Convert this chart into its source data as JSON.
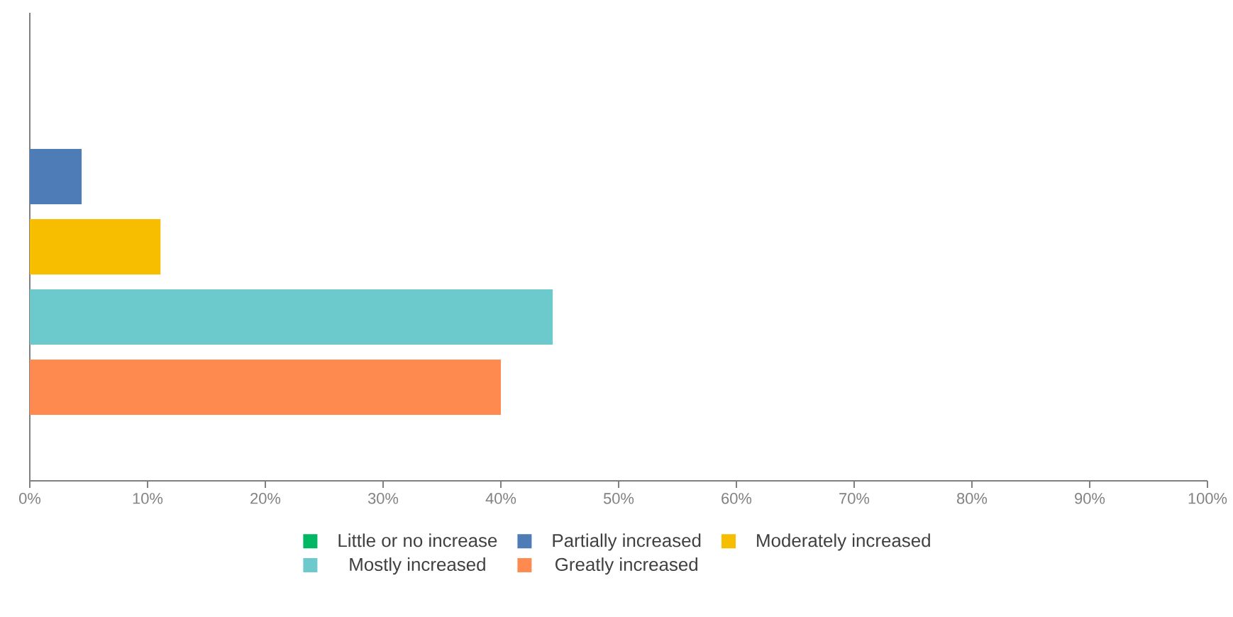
{
  "chart_data": {
    "type": "bar",
    "orientation": "horizontal",
    "categories": [
      null
    ],
    "series": [
      {
        "name": "Little or no increase",
        "color": "#00b863",
        "values": [
          0
        ]
      },
      {
        "name": "Partially increased",
        "color": "#4e7cb6",
        "values": [
          4.4
        ]
      },
      {
        "name": "Moderately increased",
        "color": "#f7be00",
        "values": [
          11.1
        ]
      },
      {
        "name": "Mostly increased",
        "color": "#6cc9cc",
        "values": [
          44.4
        ]
      },
      {
        "name": "Greatly increased",
        "color": "#ff8a50",
        "values": [
          40.0
        ]
      }
    ],
    "xlim": [
      0,
      100
    ],
    "xticks": [
      {
        "value": 0,
        "label": "0%"
      },
      {
        "value": 10,
        "label": "10%"
      },
      {
        "value": 20,
        "label": "20%"
      },
      {
        "value": 30,
        "label": "30%"
      },
      {
        "value": 40,
        "label": "40%"
      },
      {
        "value": 50,
        "label": "50%"
      },
      {
        "value": 60,
        "label": "60%"
      },
      {
        "value": 70,
        "label": "70%"
      },
      {
        "value": 80,
        "label": "80%"
      },
      {
        "value": 90,
        "label": "90%"
      },
      {
        "value": 100,
        "label": "100%"
      }
    ],
    "legend": "bottom"
  }
}
